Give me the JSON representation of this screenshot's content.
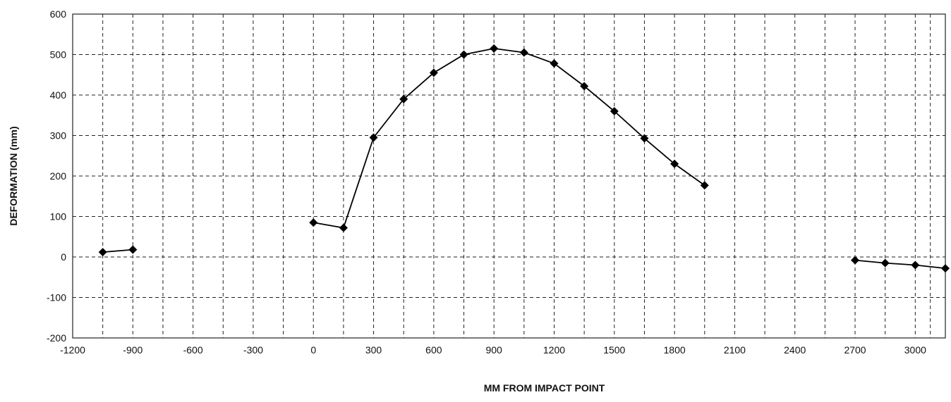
{
  "chart_data": {
    "type": "scatter",
    "xlabel": "MM FROM IMPACT POINT",
    "ylabel": "DEFORMATION (mm)",
    "xlim": [
      -1200,
      3150
    ],
    "ylim": [
      -200,
      600
    ],
    "x_ticks": [
      -1200,
      -900,
      -600,
      -300,
      0,
      300,
      600,
      900,
      1200,
      1500,
      1800,
      2100,
      2400,
      2700,
      3000
    ],
    "y_ticks": [
      -200,
      -100,
      0,
      100,
      200,
      300,
      400,
      500,
      600
    ],
    "x_tick_labels": [
      "-1200",
      "-900",
      "-600",
      "-300",
      "0",
      "300",
      "600",
      "900",
      "1200",
      "1500",
      "1800",
      "2100",
      "2400",
      "2700",
      "3000"
    ],
    "y_tick_labels": [
      "-200",
      "-100",
      "0",
      "100",
      "200",
      "300",
      "400",
      "500",
      "600"
    ],
    "grid": true,
    "marker": "diamond",
    "line_color": "#000000",
    "segments": [
      {
        "x": [
          -1050,
          -900
        ],
        "y": [
          12,
          18
        ]
      },
      {
        "x": [
          0,
          150,
          300,
          450,
          600,
          750,
          900,
          1050,
          1200,
          1350,
          1500,
          1650,
          1800,
          1950
        ],
        "y": [
          85,
          72,
          295,
          390,
          455,
          500,
          515,
          505,
          478,
          422,
          360,
          293,
          230,
          177
        ]
      },
      {
        "x": [
          2700,
          2850,
          3000,
          3150
        ],
        "y": [
          -8,
          -15,
          -20,
          -28
        ]
      }
    ]
  }
}
